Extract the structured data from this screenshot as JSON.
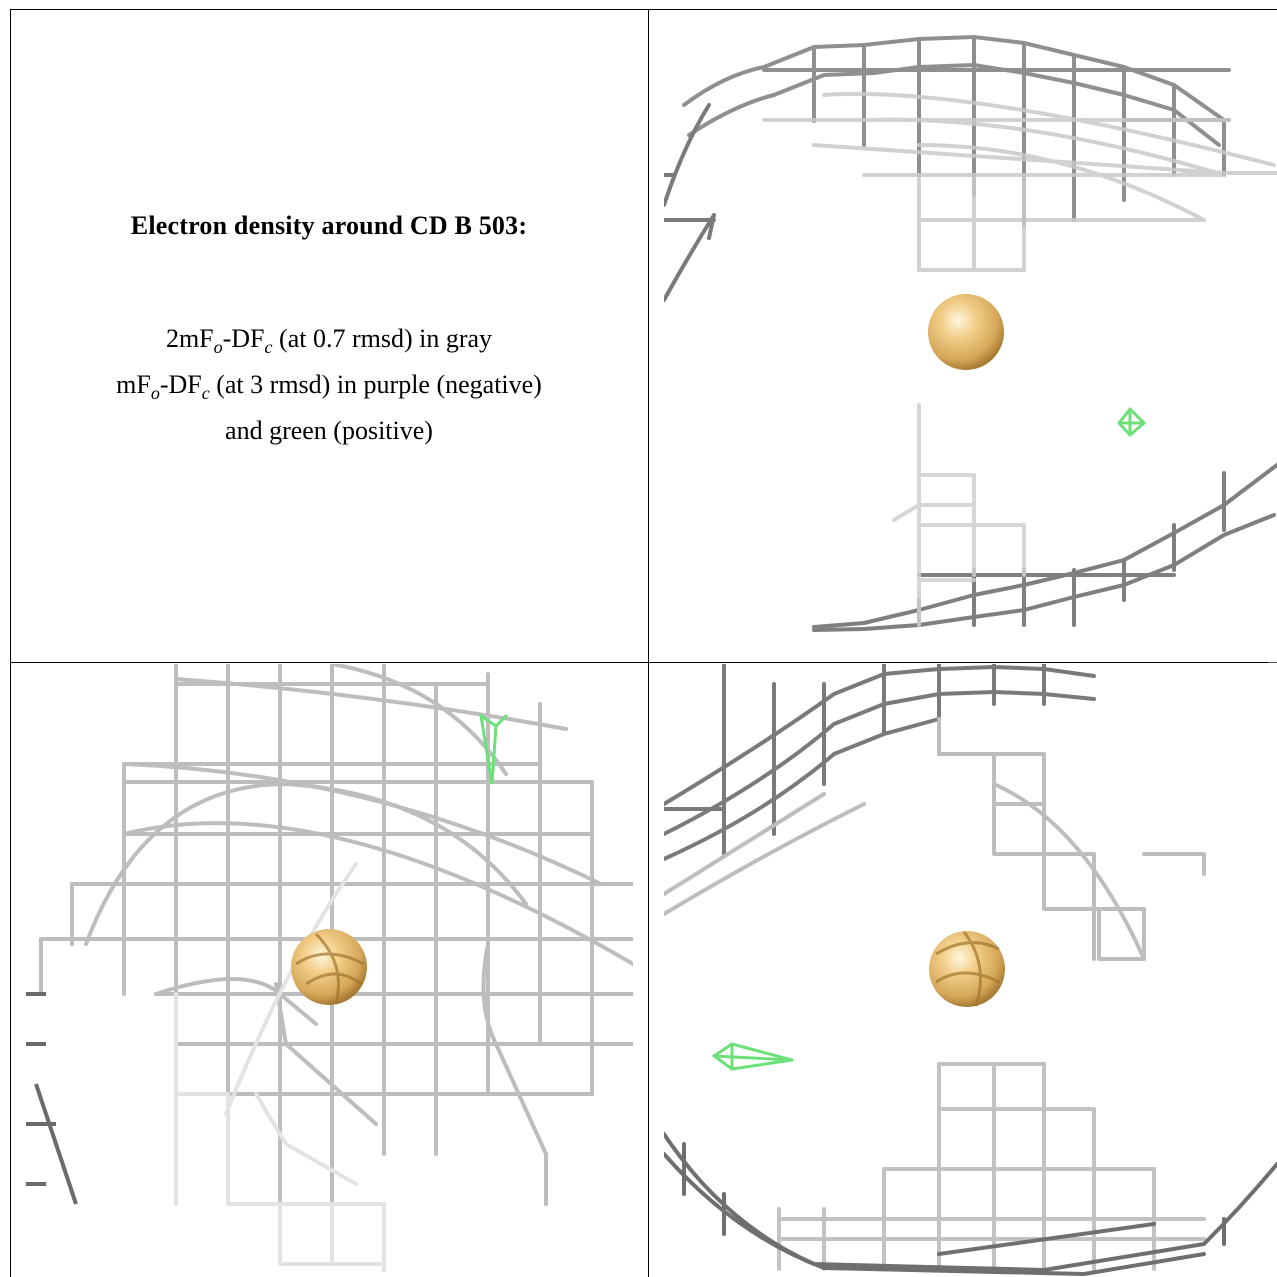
{
  "caption": {
    "title": "Electron density around CD B 503:",
    "line1_prefix": "2mF",
    "line1_sub1": "o",
    "line1_mid": "-DF",
    "line1_sub2": "c",
    "line1_rest": " (at 0.7 rmsd) in gray",
    "line2_prefix": "mF",
    "line2_sub1": "o",
    "line2_mid": "-DF",
    "line2_sub2": "c",
    "line2_rest": " (at 3 rmsd) in purple (negative)",
    "line3": "and green (positive)"
  },
  "colors": {
    "mesh_gray": "#b5b5b5",
    "mesh_dark": "#4a4a4a",
    "positive_green": "#6ee07a",
    "atom_gold": "#e2bb72",
    "border": "#000000"
  },
  "panels": [
    {
      "view": "top-right",
      "atom": "CD B 503",
      "difference_density": "positive"
    },
    {
      "view": "bottom-left",
      "atom": "CD B 503",
      "difference_density": "positive"
    },
    {
      "view": "bottom-right",
      "atom": "CD B 503",
      "difference_density": "positive"
    }
  ]
}
